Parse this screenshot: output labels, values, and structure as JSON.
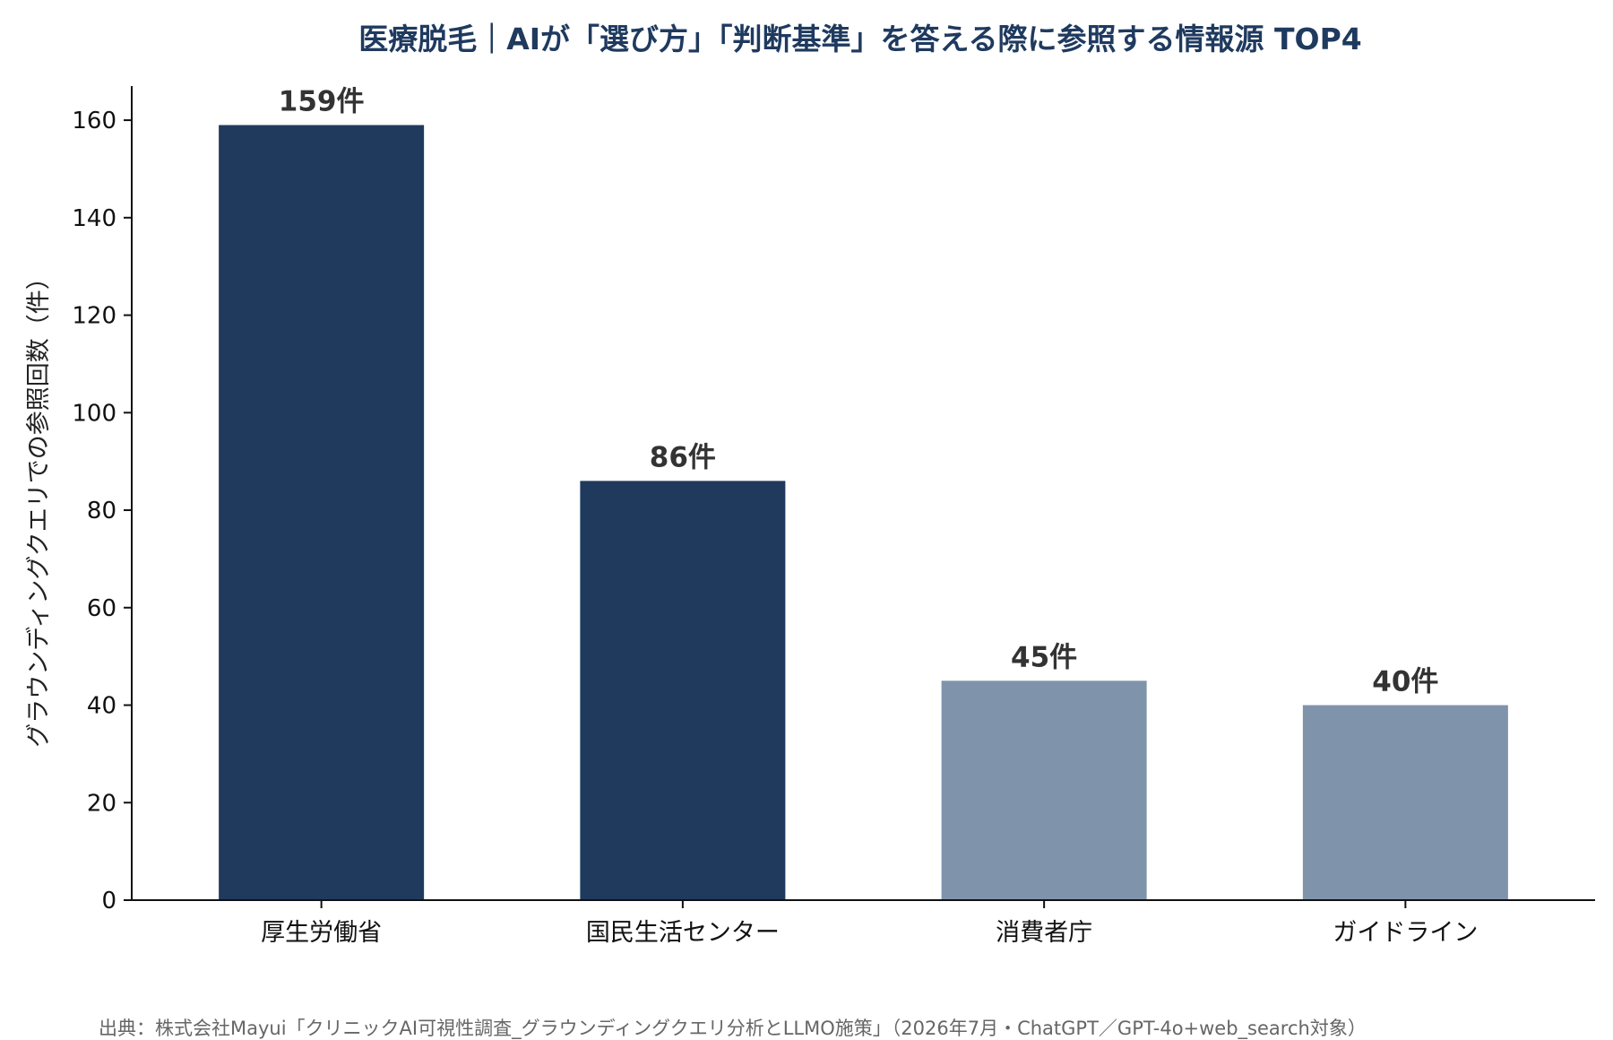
{
  "chart_data": {
    "type": "bar",
    "title": "医療脱毛｜AIが「選び方」「判断基準」を答える際に参照する情報源 TOP4",
    "ylabel": "グラウンディングクエリでの参照回数（件）",
    "xlabel": "",
    "categories": [
      "厚生労働省",
      "国民生活センター",
      "消費者庁",
      "ガイドライン"
    ],
    "values": [
      159,
      86,
      45,
      40
    ],
    "value_labels": [
      "159件",
      "86件",
      "45件",
      "40件"
    ],
    "bar_colors": [
      "#1f3a5c",
      "#1f3a5c",
      "#7f93ab",
      "#7f93ab"
    ],
    "ylim": [
      0,
      167
    ],
    "yticks": [
      0,
      20,
      40,
      60,
      80,
      100,
      120,
      140,
      160
    ],
    "grid": false,
    "legend": "none"
  },
  "source": "出典：株式会社Mayui「クリニックAI可視性調査_グラウンディングクエリ分析とLLMO施策」（2026年7月・ChatGPT／GPT-4o+web_search対象）",
  "colors": {
    "title": "#1f3a5f",
    "axis": "#111111"
  }
}
